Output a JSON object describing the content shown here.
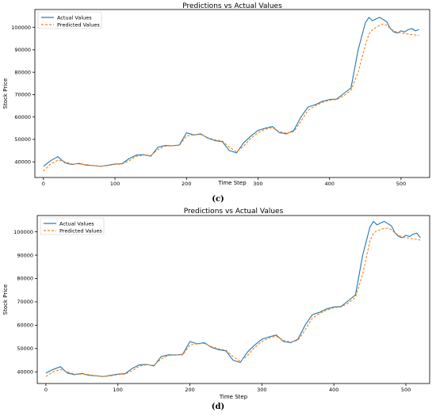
{
  "colors": {
    "actual": "#1f77b4",
    "predicted": "#ff7f0e",
    "axis": "#000000"
  },
  "captions": [
    "(c)",
    "(d)"
  ],
  "chart_data": [
    {
      "type": "line",
      "title": "Predictions vs Actual Values",
      "xlabel": "Time Step",
      "ylabel": "Stock Price",
      "xlim": [
        -12,
        540
      ],
      "ylim": [
        33000,
        108000
      ],
      "xticks": [
        0,
        100,
        200,
        300,
        400,
        500
      ],
      "yticks": [
        40000,
        50000,
        60000,
        70000,
        80000,
        90000,
        100000
      ],
      "ytick_labels": [
        "40000",
        "50000",
        "60000",
        "70000",
        "80000",
        "90000",
        "100000"
      ],
      "legend_position": "top-left",
      "grid": false,
      "series": [
        {
          "name": "Actual Values",
          "x": [
            0,
            10,
            20,
            30,
            40,
            50,
            60,
            70,
            80,
            90,
            100,
            110,
            120,
            130,
            140,
            150,
            160,
            170,
            180,
            190,
            200,
            210,
            220,
            230,
            240,
            250,
            260,
            270,
            280,
            290,
            300,
            310,
            320,
            330,
            340,
            350,
            360,
            370,
            380,
            390,
            400,
            410,
            420,
            430,
            440,
            450,
            455,
            460,
            465,
            470,
            475,
            480,
            485,
            490,
            495,
            500,
            505,
            510,
            515,
            520,
            525
          ],
          "y": [
            38000,
            40500,
            42300,
            39500,
            38800,
            39300,
            38500,
            38300,
            38000,
            38500,
            39000,
            39200,
            41500,
            43000,
            43200,
            42500,
            46500,
            47300,
            47200,
            47500,
            53000,
            52000,
            52500,
            50500,
            49500,
            49000,
            45000,
            44000,
            48500,
            51500,
            54000,
            55000,
            55800,
            53000,
            52500,
            54000,
            60000,
            64500,
            65500,
            67000,
            67800,
            68000,
            70500,
            73000,
            90000,
            102000,
            104500,
            103000,
            103800,
            104500,
            103500,
            102500,
            99500,
            98000,
            97500,
            98500,
            98000,
            99000,
            99500,
            98500,
            99000
          ]
        },
        {
          "name": "Predicted Values",
          "x": [
            0,
            10,
            20,
            30,
            40,
            50,
            60,
            70,
            80,
            90,
            100,
            110,
            120,
            130,
            140,
            150,
            160,
            170,
            180,
            190,
            200,
            210,
            220,
            230,
            240,
            250,
            260,
            270,
            280,
            290,
            300,
            310,
            320,
            330,
            340,
            350,
            360,
            370,
            380,
            390,
            400,
            410,
            420,
            430,
            440,
            450,
            455,
            460,
            465,
            470,
            475,
            480,
            485,
            490,
            495,
            500,
            505,
            510,
            515,
            520,
            525
          ],
          "y": [
            35800,
            39000,
            40800,
            40000,
            39000,
            39000,
            38800,
            38300,
            38000,
            38300,
            38800,
            39000,
            40500,
            42500,
            43000,
            42800,
            45500,
            47000,
            47200,
            47300,
            51500,
            52000,
            52200,
            50800,
            49800,
            49300,
            46500,
            44500,
            47000,
            50500,
            53000,
            54500,
            55300,
            53500,
            52800,
            53500,
            58000,
            63000,
            65000,
            66500,
            67500,
            67800,
            69500,
            72000,
            80000,
            92000,
            97000,
            99000,
            100000,
            101000,
            101500,
            101000,
            99500,
            98500,
            97800,
            97500,
            97300,
            97000,
            96800,
            96600,
            96500
          ]
        }
      ]
    },
    {
      "type": "line",
      "title": "Predictions vs Actual Values",
      "xlabel": "Time Step",
      "ylabel": "Stock Price",
      "xlim": [
        -12,
        533
      ],
      "ylim": [
        35000,
        107000
      ],
      "xticks": [
        0,
        100,
        200,
        300,
        400,
        500
      ],
      "yticks": [
        40000,
        50000,
        60000,
        70000,
        80000,
        90000,
        100000
      ],
      "ytick_labels": [
        "40000",
        "50000",
        "60000",
        "70000",
        "80000",
        "90000",
        "100000"
      ],
      "legend_position": "top-left",
      "grid": false,
      "series": [
        {
          "name": "Actual Values",
          "x": [
            0,
            10,
            20,
            30,
            40,
            50,
            60,
            70,
            80,
            90,
            100,
            110,
            120,
            130,
            140,
            150,
            160,
            170,
            180,
            190,
            200,
            210,
            220,
            230,
            240,
            250,
            260,
            270,
            280,
            290,
            300,
            310,
            320,
            330,
            340,
            350,
            360,
            370,
            380,
            390,
            400,
            410,
            420,
            430,
            440,
            450,
            455,
            460,
            465,
            470,
            475,
            480,
            485,
            490,
            495,
            500,
            505,
            510,
            515,
            520
          ],
          "y": [
            39500,
            41000,
            42200,
            39500,
            38800,
            39300,
            38500,
            38300,
            38000,
            38500,
            39000,
            39200,
            41500,
            43000,
            43200,
            42500,
            46500,
            47300,
            47200,
            47500,
            53000,
            52000,
            52500,
            50500,
            49500,
            49000,
            45000,
            44000,
            48500,
            51500,
            54000,
            55000,
            55800,
            53000,
            52500,
            54000,
            60000,
            64500,
            65500,
            67000,
            67800,
            68000,
            70500,
            73000,
            90000,
            102000,
            104500,
            103000,
            103800,
            104500,
            103500,
            102500,
            99500,
            98000,
            97500,
            98500,
            98000,
            99000,
            99500,
            97500
          ]
        },
        {
          "name": "Predicted Values",
          "x": [
            0,
            10,
            20,
            30,
            40,
            50,
            60,
            70,
            80,
            90,
            100,
            110,
            120,
            130,
            140,
            150,
            160,
            170,
            180,
            190,
            200,
            210,
            220,
            230,
            240,
            250,
            260,
            270,
            280,
            290,
            300,
            310,
            320,
            330,
            340,
            350,
            360,
            370,
            380,
            390,
            400,
            410,
            420,
            430,
            440,
            450,
            455,
            460,
            465,
            470,
            475,
            480,
            485,
            490,
            495,
            500,
            505,
            510,
            515,
            520
          ],
          "y": [
            38000,
            40000,
            41000,
            40000,
            39000,
            39000,
            38800,
            38300,
            38000,
            38300,
            38800,
            39000,
            40500,
            42500,
            43000,
            42800,
            45500,
            47000,
            47200,
            47300,
            51500,
            52000,
            52200,
            50800,
            49800,
            49300,
            46500,
            44500,
            47000,
            50500,
            53000,
            54500,
            55300,
            53500,
            52800,
            53500,
            58000,
            63000,
            65000,
            66500,
            67500,
            67800,
            69500,
            72000,
            82000,
            96000,
            99500,
            100500,
            101000,
            101500,
            101500,
            101000,
            99500,
            98500,
            97800,
            97500,
            97300,
            97000,
            96800,
            96500
          ]
        }
      ]
    }
  ]
}
